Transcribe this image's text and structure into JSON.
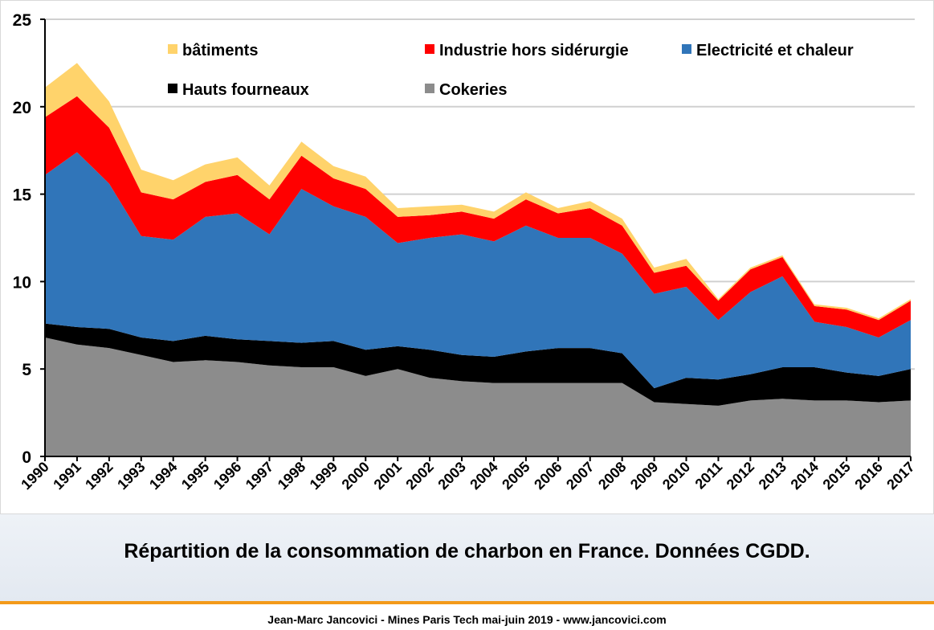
{
  "chart_data": {
    "type": "area",
    "stacked": true,
    "x": [
      "1990",
      "1991",
      "1992",
      "1993",
      "1994",
      "1995",
      "1996",
      "1997",
      "1998",
      "1999",
      "2000",
      "2001",
      "2002",
      "2003",
      "2004",
      "2005",
      "2006",
      "2007",
      "2008",
      "2009",
      "2010",
      "2011",
      "2012",
      "2013",
      "2014",
      "2015",
      "2016",
      "2017"
    ],
    "ylim": [
      0,
      25
    ],
    "yticks": [
      "0",
      "5",
      "10",
      "15",
      "20",
      "25"
    ],
    "grid": true,
    "series": [
      {
        "name": "Cokeries",
        "color": "#8c8c8c",
        "values": [
          6.8,
          6.4,
          6.2,
          5.8,
          5.4,
          5.5,
          5.4,
          5.2,
          5.1,
          5.1,
          4.6,
          5.0,
          4.5,
          4.3,
          4.2,
          4.2,
          4.2,
          4.2,
          4.2,
          3.1,
          3.0,
          2.9,
          3.2,
          3.3,
          3.2,
          3.2,
          3.1,
          3.2
        ]
      },
      {
        "name": "Hauts fourneaux",
        "color": "#000000",
        "values": [
          0.8,
          1.0,
          1.1,
          1.0,
          1.2,
          1.4,
          1.3,
          1.4,
          1.4,
          1.5,
          1.5,
          1.3,
          1.6,
          1.5,
          1.5,
          1.8,
          2.0,
          2.0,
          1.7,
          0.8,
          1.5,
          1.5,
          1.5,
          1.8,
          1.9,
          1.6,
          1.5,
          1.8
        ]
      },
      {
        "name": "Electricité et chaleur",
        "color": "#3075b9",
        "values": [
          8.5,
          10.0,
          8.3,
          5.8,
          5.8,
          6.8,
          7.2,
          6.1,
          8.8,
          7.7,
          7.6,
          5.9,
          6.4,
          6.9,
          6.6,
          7.2,
          6.3,
          6.3,
          5.7,
          5.4,
          5.2,
          3.4,
          4.7,
          5.2,
          2.6,
          2.6,
          2.2,
          2.8
        ]
      },
      {
        "name": "Industrie hors sidérurgie",
        "color": "#ff0000",
        "values": [
          3.3,
          3.2,
          3.2,
          2.5,
          2.3,
          2.0,
          2.2,
          2.0,
          1.9,
          1.6,
          1.6,
          1.5,
          1.3,
          1.3,
          1.3,
          1.5,
          1.4,
          1.7,
          1.6,
          1.2,
          1.2,
          1.1,
          1.3,
          1.1,
          0.9,
          1.0,
          1.0,
          1.1
        ]
      },
      {
        "name": "bâtiments",
        "color": "#ffd36b",
        "values": [
          1.7,
          1.9,
          1.5,
          1.3,
          1.1,
          1.0,
          1.0,
          0.8,
          0.8,
          0.7,
          0.7,
          0.5,
          0.5,
          0.4,
          0.4,
          0.4,
          0.3,
          0.4,
          0.4,
          0.3,
          0.4,
          0.1,
          0.1,
          0.1,
          0.1,
          0.1,
          0.1,
          0.1
        ]
      }
    ],
    "legend": {
      "placement": "top",
      "order": [
        "bâtiments",
        "Industrie hors sidérurgie",
        "Electricité et chaleur",
        "Hauts fourneaux",
        "Cokeries"
      ]
    }
  },
  "caption": "Répartition de la consommation de charbon en France. Données CGDD.",
  "footer": "Jean-Marc Jancovici - Mines Paris Tech mai-juin 2019 - www.jancovici.com",
  "colors": {
    "accent_rule": "#f39a1a",
    "gridline": "#d0d0d0"
  }
}
